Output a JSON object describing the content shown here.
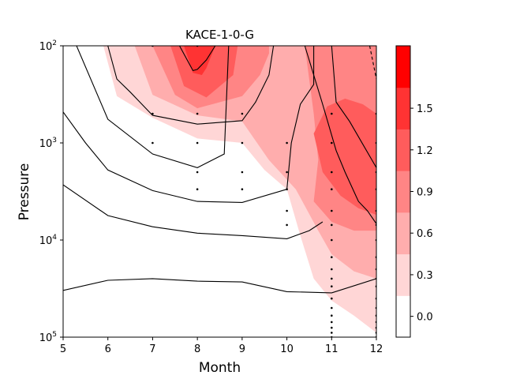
{
  "chart_data": {
    "type": "contour",
    "title": "KACE-1-0-G",
    "xlabel": "Month",
    "ylabel": "Pressure",
    "xlim": [
      5,
      12
    ],
    "ylim": [
      100000,
      100
    ],
    "yscale": "log",
    "x_ticks": [
      5,
      6,
      7,
      8,
      9,
      10,
      11,
      12
    ],
    "x_tick_labels": [
      "5",
      "6",
      "7",
      "8",
      "9",
      "10",
      "11",
      "12"
    ],
    "y_ticks": [
      100,
      1000,
      10000,
      100000
    ],
    "y_tick_labels": [
      {
        "base": "10",
        "exp": "2"
      },
      {
        "base": "10",
        "exp": "3"
      },
      {
        "base": "10",
        "exp": "4"
      },
      {
        "base": "10",
        "exp": "5"
      }
    ],
    "colorbar": {
      "levels": [
        0.0,
        0.3,
        0.6,
        0.9,
        1.2,
        1.5
      ],
      "tick_labels": [
        "0.0",
        "0.3",
        "0.6",
        "0.9",
        "1.2",
        "1.5"
      ],
      "colors": [
        "#ffffff",
        "#ffd6d6",
        "#ffadad",
        "#ff8585",
        "#ff5c5c",
        "#ff3333",
        "#ff0000"
      ]
    },
    "filled_regions": [
      {
        "level": 0.15,
        "points": [
          [
            5.9,
            100
          ],
          [
            6.2,
            330
          ],
          [
            7,
            550
          ],
          [
            8,
            900
          ],
          [
            9,
            1000
          ],
          [
            9.5,
            1900
          ],
          [
            10,
            3000
          ],
          [
            10.3,
            9000
          ],
          [
            10.6,
            25000
          ],
          [
            11,
            42000
          ],
          [
            11.5,
            60000
          ],
          [
            12,
            90000
          ],
          [
            12,
            100
          ],
          [
            5.9,
            100
          ]
        ]
      },
      {
        "level": 0.45,
        "points": [
          [
            6.6,
            100
          ],
          [
            7,
            320
          ],
          [
            8,
            520
          ],
          [
            9,
            600
          ],
          [
            9.6,
            1500
          ],
          [
            10.2,
            3000
          ],
          [
            10.7,
            8000
          ],
          [
            11,
            14000
          ],
          [
            11.5,
            21000
          ],
          [
            12,
            25000
          ],
          [
            12,
            100
          ],
          [
            6.6,
            100
          ]
        ]
      },
      {
        "level": 0.75,
        "points": [
          [
            7,
            100
          ],
          [
            7.5,
            320
          ],
          [
            8,
            440
          ],
          [
            9,
            330
          ],
          [
            9.4,
            200
          ],
          [
            9.6,
            120
          ],
          [
            9.6,
            100
          ],
          [
            7,
            100
          ]
        ]
      },
      {
        "level": 0.75,
        "points": [
          [
            10.4,
            100
          ],
          [
            10.6,
            500
          ],
          [
            10.7,
            1500
          ],
          [
            10.6,
            4000
          ],
          [
            11,
            6500
          ],
          [
            11.5,
            8000
          ],
          [
            12,
            8000
          ],
          [
            12,
            100
          ],
          [
            10.4,
            100
          ]
        ]
      },
      {
        "level": 1.05,
        "points": [
          [
            7.4,
            100
          ],
          [
            7.7,
            260
          ],
          [
            8.2,
            340
          ],
          [
            8.8,
            200
          ],
          [
            8.9,
            100
          ],
          [
            7.4,
            100
          ]
        ]
      },
      {
        "level": 1.05,
        "points": [
          [
            10.6,
            800
          ],
          [
            10.9,
            420
          ],
          [
            11.3,
            350
          ],
          [
            11.7,
            400
          ],
          [
            12,
            500
          ],
          [
            12,
            5500
          ],
          [
            11.6,
            4700
          ],
          [
            11.2,
            3500
          ],
          [
            10.8,
            2000
          ],
          [
            10.6,
            800
          ]
        ]
      },
      {
        "level": 1.35,
        "points": [
          [
            7.7,
            100
          ],
          [
            7.9,
            190
          ],
          [
            8.1,
            200
          ],
          [
            8.2,
            170
          ],
          [
            8.4,
            100
          ],
          [
            7.7,
            100
          ]
        ]
      }
    ],
    "contour_lines": [
      {
        "style": "solid",
        "points": [
          [
            5,
            33000
          ],
          [
            6,
            26000
          ],
          [
            7,
            25000
          ],
          [
            8,
            26500
          ],
          [
            9,
            27000
          ],
          [
            10,
            34000
          ],
          [
            11,
            35000
          ],
          [
            12,
            25000
          ]
        ]
      },
      {
        "style": "solid",
        "points": [
          [
            5,
            2700
          ],
          [
            6,
            5600
          ],
          [
            7,
            7300
          ],
          [
            8,
            8500
          ],
          [
            9,
            9000
          ],
          [
            10,
            9700
          ],
          [
            10.5,
            8000
          ],
          [
            10.8,
            6500
          ]
        ]
      },
      {
        "style": "solid",
        "points": [
          [
            5,
            480
          ],
          [
            5.5,
            1000
          ],
          [
            6,
            1900
          ],
          [
            7,
            3100
          ],
          [
            8,
            4000
          ],
          [
            9,
            4100
          ],
          [
            10,
            3000
          ],
          [
            10.1,
            1000
          ],
          [
            10.3,
            400
          ],
          [
            10.6,
            250
          ],
          [
            10.6,
            100
          ]
        ]
      },
      {
        "style": "solid",
        "points": [
          [
            6,
            100
          ],
          [
            6.2,
            220
          ],
          [
            6.5,
            300
          ],
          [
            7,
            520
          ],
          [
            8,
            640
          ],
          [
            9,
            590
          ],
          [
            9.3,
            380
          ],
          [
            9.6,
            200
          ],
          [
            9.7,
            100
          ]
        ]
      },
      {
        "style": "solid",
        "points": [
          [
            7.6,
            100
          ],
          [
            7.9,
            180
          ],
          [
            8,
            175
          ],
          [
            8.2,
            140
          ],
          [
            8.4,
            100
          ]
        ]
      },
      {
        "style": "solid",
        "points": [
          [
            10.4,
            100
          ],
          [
            10.8,
            400
          ],
          [
            11.1,
            1200
          ],
          [
            11.3,
            2000
          ],
          [
            11.6,
            4000
          ],
          [
            11.8,
            5000
          ],
          [
            12,
            6800
          ]
        ]
      },
      {
        "style": "solid",
        "points": [
          [
            11,
            100
          ],
          [
            11.1,
            380
          ],
          [
            11.4,
            600
          ],
          [
            12,
            1800
          ]
        ]
      },
      {
        "style": "solid",
        "points": [
          [
            5.3,
            100
          ],
          [
            6,
            570
          ],
          [
            7,
            1300
          ],
          [
            8,
            1800
          ],
          [
            8.6,
            1300
          ],
          [
            8.7,
            100
          ]
        ]
      },
      {
        "style": "dashed",
        "points": [
          [
            11.85,
            100
          ],
          [
            12,
            220
          ]
        ]
      }
    ],
    "markers": {
      "x": [
        7,
        7,
        7,
        8,
        8,
        8,
        8,
        8,
        9,
        9,
        9,
        9,
        10,
        10,
        10,
        10,
        10,
        11,
        11,
        11,
        11,
        11,
        11,
        11,
        11,
        11,
        11,
        11,
        11,
        11,
        11,
        11,
        11,
        11,
        11,
        12,
        12,
        12,
        12,
        12,
        12,
        12,
        12,
        12,
        12,
        12,
        12,
        12,
        12,
        12,
        12,
        12,
        12
      ],
      "y": [
        100,
        500,
        1000,
        100,
        500,
        1000,
        2000,
        3000,
        500,
        1000,
        2000,
        3000,
        1000,
        2000,
        3000,
        5000,
        7000,
        500,
        1000,
        2000,
        3000,
        5000,
        7000,
        10000,
        15000,
        20000,
        25000,
        30000,
        40000,
        50000,
        60000,
        70000,
        80000,
        90000,
        100000,
        500,
        1000,
        2000,
        3000,
        5000,
        7000,
        10000,
        15000,
        20000,
        25000,
        30000,
        40000,
        50000,
        60000,
        70000,
        80000,
        90000,
        100000
      ]
    }
  }
}
